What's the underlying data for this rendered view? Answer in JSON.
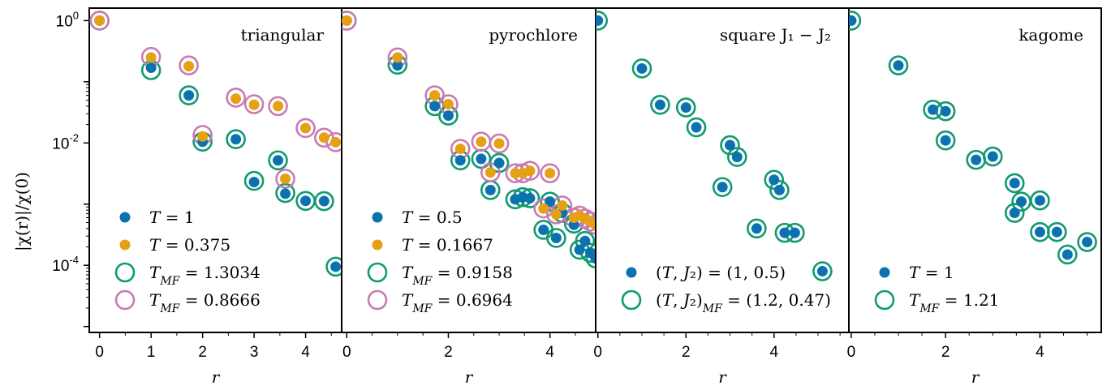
{
  "figure": {
    "ylabel": "|χ(r)|/χ(0)",
    "y_ticks": [
      {
        "value": 1,
        "base": "10",
        "exp": "0"
      },
      {
        "value": 0.01,
        "base": "10",
        "exp": "-2"
      },
      {
        "value": 0.0001,
        "base": "10",
        "exp": "-4"
      }
    ],
    "ylim": [
      8e-06,
      1.6
    ],
    "y_scale": "log"
  },
  "colors": {
    "blue": "#0b72b0",
    "orange": "#e5a014",
    "green": "#0f9b71",
    "pink": "#c97bb4"
  },
  "chart_data": [
    {
      "type": "scatter",
      "title": "triangular",
      "xlabel": "r",
      "xlim": [
        -0.2,
        4.7
      ],
      "x_ticks": [
        0,
        1,
        2,
        3,
        4
      ],
      "legend": "lower-left",
      "series": [
        {
          "name": "T = 1",
          "marker": "dot",
          "color": "blue",
          "x": [
            0,
            1,
            1.732,
            2,
            2.646,
            3,
            3.464,
            3.606,
            4,
            4.359,
            4.583
          ],
          "y": [
            1,
            0.17,
            0.06,
            0.0105,
            0.0115,
            0.0023,
            0.0052,
            0.00148,
            0.00113,
            0.00112,
            9.5e-05
          ]
        },
        {
          "name": "T = 0.375",
          "marker": "dot",
          "color": "orange",
          "x": [
            0,
            1,
            1.732,
            2,
            2.646,
            3,
            3.464,
            3.606,
            4,
            4.359,
            4.583
          ],
          "y": [
            1,
            0.25,
            0.18,
            0.0128,
            0.053,
            0.042,
            0.04,
            0.0026,
            0.0175,
            0.0122,
            0.0103
          ]
        },
        {
          "name": "T_MF = 1.3034",
          "marker": "ring",
          "color": "green",
          "x": [
            0,
            1,
            1.732,
            2,
            2.646,
            3,
            3.464,
            3.606,
            4,
            4.359,
            4.583
          ],
          "y": [
            1,
            0.155,
            0.06,
            0.0105,
            0.0115,
            0.0024,
            0.0052,
            0.00152,
            0.00113,
            0.00112,
            9.5e-05
          ]
        },
        {
          "name": "T_MF = 0.8666",
          "marker": "ring",
          "color": "pink",
          "x": [
            0,
            1,
            1.732,
            2,
            2.646,
            3,
            3.464,
            3.606,
            4,
            4.359,
            4.583
          ],
          "y": [
            1,
            0.255,
            0.185,
            0.0135,
            0.055,
            0.043,
            0.04,
            0.0026,
            0.0175,
            0.0122,
            0.0103
          ]
        }
      ],
      "legend_entries": [
        {
          "marker": "dot",
          "color": "blue",
          "label": "T = 1"
        },
        {
          "marker": "dot",
          "color": "orange",
          "label": "T = 0.375"
        },
        {
          "marker": "ring",
          "color": "green",
          "label": "T_MF = 1.3034"
        },
        {
          "marker": "ring",
          "color": "pink",
          "label": "T_MF = 0.8666"
        }
      ]
    },
    {
      "type": "scatter",
      "title": "pyrochlore",
      "xlabel": "r",
      "xlim": [
        -0.1,
        4.9
      ],
      "x_ticks": [
        0,
        2,
        4
      ],
      "legend": "lower-left",
      "series": [
        {
          "name": "T = 0.5",
          "marker": "dot",
          "color": "blue",
          "x": [
            0,
            1,
            1.732,
            2,
            2.236,
            2.646,
            2.828,
            3,
            3.317,
            3.464,
            3.606,
            4,
            3.873,
            4.123,
            4.243,
            4.472,
            4.583,
            4.69,
            4.796,
            4.899
          ],
          "y": [
            1,
            0.185,
            0.04,
            0.028,
            0.0052,
            0.0055,
            0.0017,
            0.0047,
            0.0012,
            0.0013,
            0.00125,
            0.0011,
            0.00038,
            0.00028,
            0.00072,
            0.00046,
            0.00018,
            0.00025,
            0.00016,
            0.00013
          ]
        },
        {
          "name": "T = 0.1667",
          "marker": "dot",
          "color": "orange",
          "x": [
            0,
            1,
            1.732,
            2,
            2.236,
            2.646,
            2.828,
            3,
            3.317,
            3.464,
            3.606,
            4,
            3.873,
            4.123,
            4.243,
            4.472,
            4.583,
            4.69,
            4.796,
            4.899
          ],
          "y": [
            1,
            0.25,
            0.06,
            0.043,
            0.008,
            0.0105,
            0.0033,
            0.0098,
            0.0032,
            0.0032,
            0.0035,
            0.0032,
            0.00085,
            0.00068,
            0.00095,
            0.0006,
            0.00065,
            0.00058,
            0.00052,
            0.00046
          ]
        },
        {
          "name": "T_MF = 0.9158",
          "marker": "ring",
          "color": "green",
          "x": [
            0,
            1,
            1.732,
            2,
            2.236,
            2.646,
            2.828,
            3,
            3.317,
            3.464,
            3.606,
            4,
            3.873,
            4.123,
            4.243,
            4.472,
            4.583,
            4.69,
            4.796,
            4.899
          ],
          "y": [
            1,
            0.19,
            0.04,
            0.028,
            0.0052,
            0.0055,
            0.0017,
            0.0047,
            0.0012,
            0.0013,
            0.00125,
            0.0011,
            0.00038,
            0.00028,
            0.00072,
            0.00048,
            0.00018,
            0.00025,
            0.00016,
            0.00013
          ]
        },
        {
          "name": "T_MF = 0.6964",
          "marker": "ring",
          "color": "pink",
          "x": [
            0,
            1,
            1.732,
            2,
            2.236,
            2.646,
            2.828,
            3,
            3.317,
            3.464,
            3.606,
            4,
            3.873,
            4.123,
            4.243,
            4.472,
            4.583,
            4.69,
            4.796,
            4.899
          ],
          "y": [
            1,
            0.25,
            0.06,
            0.043,
            0.008,
            0.0105,
            0.0033,
            0.0098,
            0.0032,
            0.0032,
            0.0035,
            0.0032,
            0.00085,
            0.00068,
            0.00095,
            0.0006,
            0.00065,
            0.00058,
            0.00052,
            0.00046
          ]
        }
      ],
      "legend_entries": [
        {
          "marker": "dot",
          "color": "blue",
          "label": "T = 0.5"
        },
        {
          "marker": "dot",
          "color": "orange",
          "label": "T = 0.1667"
        },
        {
          "marker": "ring",
          "color": "green",
          "label": "T_MF = 0.9158"
        },
        {
          "marker": "ring",
          "color": "pink",
          "label": "T_MF = 0.6964"
        }
      ]
    },
    {
      "type": "scatter",
      "title": "square J₁ − J₂",
      "xlabel": "r",
      "xlim": [
        -0.05,
        5.7
      ],
      "x_ticks": [
        0,
        2,
        4
      ],
      "legend": "lower-left",
      "series": [
        {
          "name": "(T, J₂) = (1, 0.5)",
          "marker": "dot",
          "color": "blue",
          "x": [
            0,
            1,
            1.414,
            2,
            2.236,
            2.828,
            3,
            3.162,
            3.606,
            4,
            4.123,
            4.243,
            4.472,
            5.099
          ],
          "y": [
            1,
            0.165,
            0.042,
            0.038,
            0.018,
            0.0019,
            0.0092,
            0.0059,
            0.0004,
            0.0025,
            0.0017,
            0.00034,
            0.00034,
            8e-05
          ]
        },
        {
          "name": "(T, J₂)_MF = (1.2, 0.47)",
          "marker": "ring",
          "color": "green",
          "x": [
            0,
            1,
            1.414,
            2,
            2.236,
            2.828,
            3,
            3.162,
            3.606,
            4,
            4.123,
            4.243,
            4.472,
            5.099
          ],
          "y": [
            1,
            0.165,
            0.042,
            0.038,
            0.018,
            0.0019,
            0.0092,
            0.0059,
            0.0004,
            0.0025,
            0.0017,
            0.00034,
            0.00034,
            8e-05
          ]
        }
      ],
      "legend_entries": [
        {
          "marker": "dot",
          "color": "blue",
          "label": "(T, J₂) = (1, 0.5)"
        },
        {
          "marker": "ring",
          "color": "green",
          "label": "(T, J₂)_MF = (1.2, 0.47)"
        }
      ]
    },
    {
      "type": "scatter",
      "title": "kagome",
      "xlabel": "r",
      "xlim": [
        -0.05,
        5.3
      ],
      "x_ticks": [
        0,
        2,
        4
      ],
      "legend": "lower-left",
      "series": [
        {
          "name": "T = 1",
          "marker": "dot",
          "color": "blue",
          "x": [
            0,
            1,
            1.732,
            2,
            2,
            2.646,
            3,
            3.464,
            3.464,
            3.606,
            4,
            4,
            4.359,
            4.583,
            5
          ],
          "y": [
            1,
            0.185,
            0.035,
            0.033,
            0.011,
            0.0053,
            0.006,
            0.0022,
            0.00072,
            0.0011,
            0.00115,
            0.00035,
            0.00035,
            0.00015,
            0.00024
          ]
        },
        {
          "name": "T_MF = 1.21",
          "marker": "ring",
          "color": "green",
          "x": [
            0,
            1,
            1.732,
            2,
            2,
            2.646,
            3,
            3.464,
            3.464,
            3.606,
            4,
            4,
            4.359,
            4.583,
            5
          ],
          "y": [
            1,
            0.185,
            0.035,
            0.033,
            0.011,
            0.0053,
            0.006,
            0.0022,
            0.00072,
            0.0011,
            0.00115,
            0.00035,
            0.00035,
            0.00015,
            0.00024
          ]
        }
      ],
      "legend_entries": [
        {
          "marker": "dot",
          "color": "blue",
          "label": "T = 1"
        },
        {
          "marker": "ring",
          "color": "green",
          "label": "T_MF = 1.21"
        }
      ]
    }
  ]
}
